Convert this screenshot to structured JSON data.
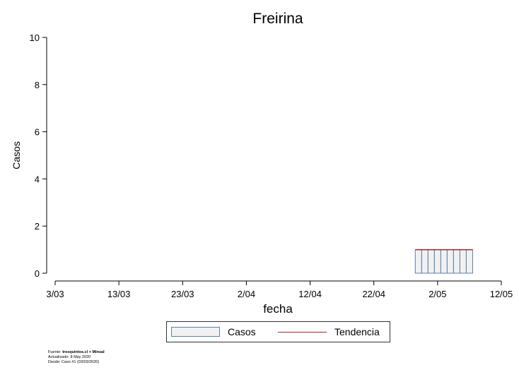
{
  "chart_data": {
    "type": "bar",
    "title": "Freirina",
    "xlabel": "fecha",
    "ylabel": "Casos",
    "ylim": [
      0,
      10
    ],
    "y_ticks": [
      0,
      2,
      4,
      6,
      8,
      10
    ],
    "x_range": [
      "2020-03-03",
      "2020-05-12"
    ],
    "x_ticks": [
      {
        "date": "2020-03-03",
        "label": "3/03"
      },
      {
        "date": "2020-03-13",
        "label": "13/03"
      },
      {
        "date": "2020-03-23",
        "label": "23/03"
      },
      {
        "date": "2020-04-02",
        "label": "2/04"
      },
      {
        "date": "2020-04-12",
        "label": "12/04"
      },
      {
        "date": "2020-04-22",
        "label": "22/04"
      },
      {
        "date": "2020-05-02",
        "label": "2/05"
      },
      {
        "date": "2020-05-12",
        "label": "12/05"
      }
    ],
    "series": [
      {
        "name": "Casos",
        "kind": "bar",
        "x": [
          "2020-04-29",
          "2020-04-30",
          "2020-05-01",
          "2020-05-02",
          "2020-05-03",
          "2020-05-04",
          "2020-05-05",
          "2020-05-06",
          "2020-05-07"
        ],
        "values": [
          1,
          1,
          1,
          1,
          1,
          1,
          1,
          1,
          1
        ]
      },
      {
        "name": "Tendencia",
        "kind": "line",
        "x": [
          "2020-04-29",
          "2020-05-07"
        ],
        "values": [
          1,
          1
        ]
      }
    ],
    "colors": {
      "bar_fill": "#f1f1f1",
      "bar_stroke": "#5b7fa6",
      "trend": "#9b2a2a"
    },
    "legend": {
      "position": "bottom",
      "entries": [
        "Casos",
        "Tendencia"
      ]
    },
    "grid": false
  },
  "source": {
    "line1_prefix": "Fuente: ",
    "line1_bold": "tresquintos.cl + Minsal",
    "line2": "Actualizado: 8 May 2020",
    "line3": "Desde: Caso #1  (03/03/2020)"
  }
}
